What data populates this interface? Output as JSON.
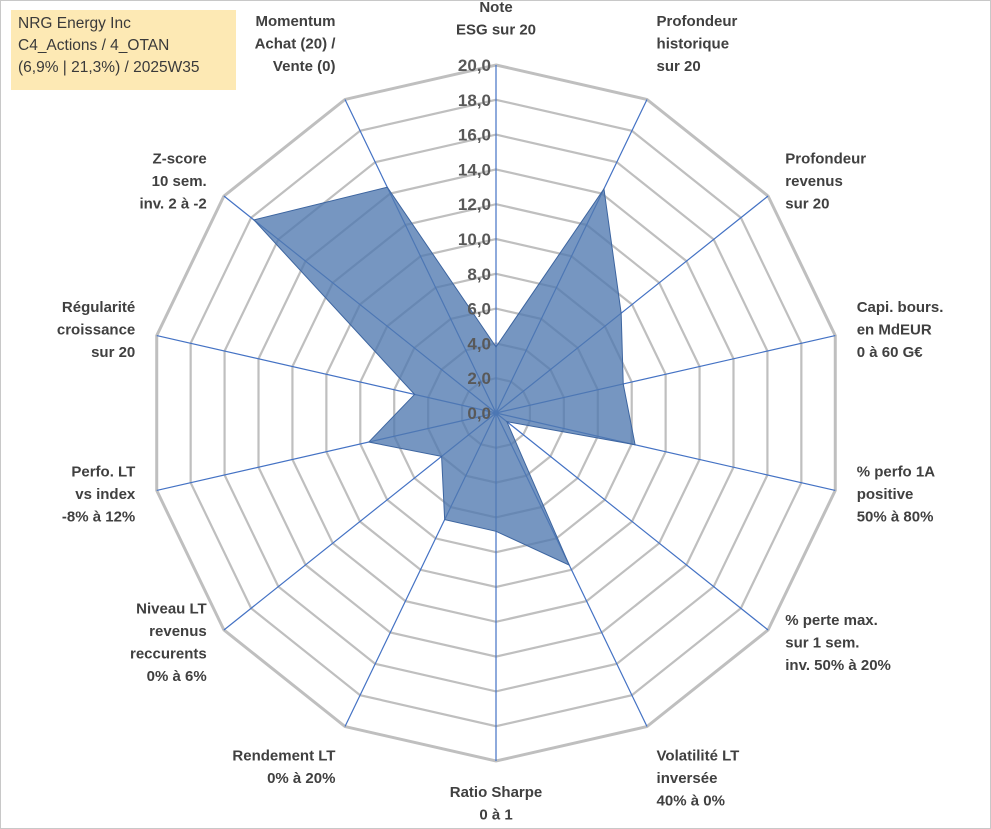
{
  "info": {
    "company": "NRG Energy Inc",
    "category": "C4_Actions / 4_OTAN",
    "stats": "(6,9% | 21,3%) / 2025W35"
  },
  "colors": {
    "grid": "#bfbfbf",
    "spoke": "#4472c4",
    "fill": "#4f79b0",
    "info_bg": "#fde9b4"
  },
  "chart_data": {
    "type": "radar",
    "title": "",
    "range": [
      0,
      20
    ],
    "ticks": [
      "0,0",
      "2,0",
      "4,0",
      "6,0",
      "8,0",
      "10,0",
      "12,0",
      "14,0",
      "16,0",
      "18,0",
      "20,0"
    ],
    "grid": true,
    "axes": [
      [
        "Note",
        "ESG sur 20"
      ],
      [
        "Profondeur",
        "historique",
        "sur 20"
      ],
      [
        "Profondeur",
        "revenus",
        "sur 20"
      ],
      [
        "Capi. bours.",
        "en MdEUR",
        "0 à 60 G€"
      ],
      [
        "% perfo 1A",
        "positive",
        "50% à 80%"
      ],
      [
        "% perte max.",
        "sur 1 sem.",
        "inv. 50% à 20%"
      ],
      [
        "Volatilité LT",
        "inversée",
        "40% à 0%"
      ],
      [
        "Ratio Sharpe",
        "0 à 1"
      ],
      [
        "Rendement LT",
        "0% à 20%"
      ],
      [
        "Niveau LT",
        "revenus",
        "reccurents",
        "0% à 6%"
      ],
      [
        "Perfo. LT",
        "vs index",
        "-8% à 12%"
      ],
      [
        "Régularité",
        "croissance",
        "sur 20"
      ],
      [
        "Z-score",
        "10 sem.",
        "inv. 2 à -2"
      ],
      [
        "Momentum",
        "Achat (20) /",
        "Vente (0)"
      ]
    ],
    "series": [
      {
        "values": [
          3.8,
          14.3,
          9.2,
          7.5,
          8.2,
          0.8,
          9.7,
          6.8,
          6.8,
          4.0,
          7.5,
          4.8,
          17.8,
          14.4
        ]
      }
    ]
  }
}
